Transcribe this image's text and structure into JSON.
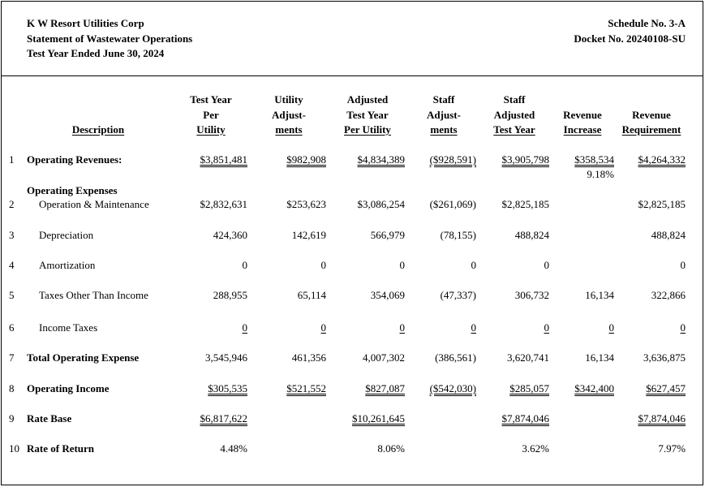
{
  "header": {
    "left": [
      "K W Resort Utilities Corp",
      "Statement of Wastewater Operations",
      "Test Year Ended June 30, 2024"
    ],
    "right": [
      "Schedule No. 3-A",
      "Docket No. 20240108-SU"
    ]
  },
  "columns": [
    {
      "lines": [
        "Description"
      ]
    },
    {
      "lines": [
        "Test Year",
        "Per",
        "Utility"
      ]
    },
    {
      "lines": [
        "Utility",
        "Adjust-",
        "ments"
      ]
    },
    {
      "lines": [
        "Adjusted",
        "Test Year",
        "Per Utility"
      ]
    },
    {
      "lines": [
        "Staff",
        "Adjust-",
        "ments"
      ]
    },
    {
      "lines": [
        "Staff",
        "Adjusted",
        "Test Year"
      ]
    },
    {
      "lines": [
        "Revenue",
        "Increase"
      ]
    },
    {
      "lines": [
        "Revenue",
        "Requirement"
      ]
    }
  ],
  "section_label": "Operating Expenses",
  "rows": [
    {
      "num": "1",
      "desc": "Operating Revenues:",
      "bold": true,
      "indent": false,
      "values": [
        "$3,851,481",
        "$982,908",
        "$4,834,389",
        "($928,591)",
        "$3,905,798",
        "$358,534",
        "$4,264,332"
      ],
      "style": [
        "du",
        "du",
        "du",
        "du",
        "du",
        "du",
        "du"
      ],
      "extra": "9.18%"
    },
    {
      "num": "2",
      "desc": "Operation & Maintenance",
      "bold": false,
      "indent": true,
      "values": [
        "$2,832,631",
        "$253,623",
        "$3,086,254",
        "($261,069)",
        "$2,825,185",
        "",
        "$2,825,185"
      ],
      "style": [
        "",
        "",
        "",
        "",
        "",
        "",
        ""
      ]
    },
    {
      "num": "3",
      "desc": "Depreciation",
      "bold": false,
      "indent": true,
      "values": [
        "424,360",
        "142,619",
        "566,979",
        "(78,155)",
        "488,824",
        "",
        "488,824"
      ],
      "style": [
        "",
        "",
        "",
        "",
        "",
        "",
        ""
      ]
    },
    {
      "num": "4",
      "desc": "Amortization",
      "bold": false,
      "indent": true,
      "values": [
        "0",
        "0",
        "0",
        "0",
        "0",
        "",
        "0"
      ],
      "style": [
        "",
        "",
        "",
        "",
        "",
        "",
        ""
      ]
    },
    {
      "num": "5",
      "desc": "Taxes Other Than Income",
      "bold": false,
      "indent": true,
      "values": [
        "288,955",
        "65,114",
        "354,069",
        "(47,337)",
        "306,732",
        "16,134",
        "322,866"
      ],
      "style": [
        "",
        "",
        "",
        "",
        "",
        "",
        ""
      ]
    },
    {
      "num": "6",
      "desc": "Income Taxes",
      "bold": false,
      "indent": true,
      "values": [
        "0",
        "0",
        "0",
        "0",
        "0",
        "0",
        "0"
      ],
      "style": [
        "u",
        "u",
        "u",
        "u",
        "u",
        "u",
        "u"
      ]
    },
    {
      "num": "7",
      "desc": "Total Operating Expense",
      "bold": true,
      "indent": false,
      "values": [
        "3,545,946",
        "461,356",
        "4,007,302",
        "(386,561)",
        "3,620,741",
        "16,134",
        "3,636,875"
      ],
      "style": [
        "",
        "",
        "",
        "",
        "",
        "",
        ""
      ]
    },
    {
      "num": "8",
      "desc": "Operating Income",
      "bold": true,
      "indent": false,
      "values": [
        "$305,535",
        "$521,552",
        "$827,087",
        "($542,030)",
        "$285,057",
        "$342,400",
        "$627,457"
      ],
      "style": [
        "du",
        "du",
        "du",
        "du",
        "du",
        "du",
        "du"
      ]
    },
    {
      "num": "9",
      "desc": "Rate Base",
      "bold": true,
      "indent": false,
      "values": [
        "$6,817,622",
        "",
        "$10,261,645",
        "",
        "$7,874,046",
        "",
        "$7,874,046"
      ],
      "style": [
        "du",
        "",
        "du",
        "",
        "du",
        "",
        "du"
      ]
    },
    {
      "num": "10",
      "desc": "Rate of Return",
      "bold": true,
      "indent": false,
      "values": [
        "4.48%",
        "",
        "8.06%",
        "",
        "3.62%",
        "",
        "7.97%"
      ],
      "style": [
        "",
        "",
        "",
        "",
        "",
        "",
        ""
      ]
    }
  ]
}
